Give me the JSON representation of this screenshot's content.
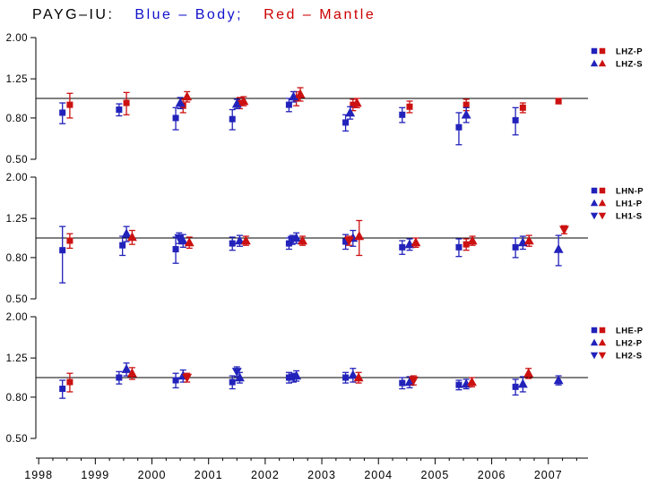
{
  "title": {
    "station": "PAYG–IU:",
    "body": "Blue – Body;",
    "mantle": "Red – Mantle"
  },
  "colors": {
    "body": "#2222bb",
    "mantle": "#cc1111",
    "title_station": "#000000",
    "title_body": "#1111cc",
    "title_mantle": "#cc0000",
    "axis": "#000000"
  },
  "chart_data": {
    "type": "scatter",
    "x_axis": {
      "ticks": [
        1998,
        1999,
        2000,
        2001,
        2002,
        2003,
        2004,
        2005,
        2006,
        2007
      ],
      "tick_labels": [
        "1998",
        "1999",
        "2000",
        "2001",
        "2002",
        "2003",
        "2004",
        "2005",
        "2006",
        "2007"
      ],
      "range": [
        1997.95,
        2007.7
      ]
    },
    "y_axis": {
      "scale": "log",
      "tick_values": [
        2.0,
        1.25,
        0.8,
        0.5
      ],
      "tick_labels": [
        "2.00",
        "1.25",
        "0.80",
        "0.50"
      ],
      "range": [
        0.5,
        2.0
      ],
      "ref_line": 1.0
    },
    "panels": [
      {
        "name": "LHZ",
        "legend": [
          {
            "label": "LHZ-P",
            "markers": [
              {
                "shape": "square",
                "color": "body"
              },
              {
                "shape": "square",
                "color": "mantle"
              }
            ]
          },
          {
            "label": "LHZ-S",
            "markers": [
              {
                "shape": "triangle-up",
                "color": "body"
              },
              {
                "shape": "triangle-up",
                "color": "mantle"
              }
            ]
          }
        ],
        "series": [
          {
            "name": "LHZ-P-body",
            "shape": "square",
            "color": "body",
            "points": [
              {
                "x": 1998.42,
                "y": 0.85,
                "e": 0.1
              },
              {
                "x": 1999.42,
                "y": 0.88,
                "e": 0.06
              },
              {
                "x": 2000.42,
                "y": 0.8,
                "e": 0.1
              },
              {
                "x": 2001.42,
                "y": 0.79,
                "e": 0.09
              },
              {
                "x": 2002.42,
                "y": 0.93,
                "e": 0.07
              },
              {
                "x": 2003.42,
                "y": 0.76,
                "e": 0.07
              },
              {
                "x": 2004.42,
                "y": 0.83,
                "e": 0.07
              },
              {
                "x": 2005.42,
                "y": 0.72,
                "e": 0.13
              },
              {
                "x": 2006.42,
                "y": 0.78,
                "e": 0.12
              }
            ]
          },
          {
            "name": "LHZ-P-mantle",
            "shape": "square",
            "color": "mantle",
            "points": [
              {
                "x": 1998.55,
                "y": 0.93,
                "e": 0.13
              },
              {
                "x": 1999.55,
                "y": 0.95,
                "e": 0.12
              },
              {
                "x": 2000.55,
                "y": 0.92,
                "e": 0.07
              },
              {
                "x": 2001.55,
                "y": 0.95,
                "e": 0.06
              },
              {
                "x": 2002.55,
                "y": 1.0,
                "e": 0.08
              },
              {
                "x": 2003.55,
                "y": 0.93,
                "e": 0.06
              },
              {
                "x": 2004.55,
                "y": 0.91,
                "e": 0.06
              },
              {
                "x": 2005.55,
                "y": 0.93,
                "e": 0.06
              },
              {
                "x": 2006.55,
                "y": 0.9,
                "e": 0.05
              },
              {
                "x": 2007.18,
                "y": 0.97,
                "e": 0.03
              }
            ]
          },
          {
            "name": "LHZ-S-body",
            "shape": "triangle-up",
            "color": "body",
            "points": [
              {
                "x": 2000.5,
                "y": 0.95,
                "e": 0.06
              },
              {
                "x": 2001.5,
                "y": 0.94,
                "e": 0.05
              },
              {
                "x": 2002.5,
                "y": 1.02,
                "e": 0.06
              },
              {
                "x": 2003.5,
                "y": 0.85,
                "e": 0.06
              },
              {
                "x": 2005.55,
                "y": 0.83,
                "e": 0.07
              }
            ]
          },
          {
            "name": "LHZ-S-mantle",
            "shape": "triangle-up",
            "color": "mantle",
            "points": [
              {
                "x": 2000.62,
                "y": 1.02,
                "e": 0.06
              },
              {
                "x": 2001.62,
                "y": 0.97,
                "e": 0.05
              },
              {
                "x": 2002.62,
                "y": 1.05,
                "e": 0.08
              },
              {
                "x": 2003.62,
                "y": 0.95,
                "e": 0.05
              }
            ]
          }
        ]
      },
      {
        "name": "LHN/LH1",
        "legend": [
          {
            "label": "LHN-P",
            "markers": [
              {
                "shape": "square",
                "color": "body"
              },
              {
                "shape": "square",
                "color": "mantle"
              }
            ]
          },
          {
            "label": "LH1-P",
            "markers": [
              {
                "shape": "triangle-up",
                "color": "body"
              },
              {
                "shape": "triangle-up",
                "color": "mantle"
              }
            ]
          },
          {
            "label": "LH1-S",
            "markers": [
              {
                "shape": "triangle-down",
                "color": "body"
              },
              {
                "shape": "triangle-down",
                "color": "mantle"
              }
            ]
          }
        ],
        "series": [
          {
            "name": "LHN-P-body",
            "shape": "square",
            "color": "body",
            "points": [
              {
                "x": 1998.42,
                "y": 0.87,
                "e": 0.27
              },
              {
                "x": 1999.48,
                "y": 0.92,
                "e": 0.1
              },
              {
                "x": 2000.42,
                "y": 0.88,
                "e": 0.13
              },
              {
                "x": 2001.42,
                "y": 0.94,
                "e": 0.07
              },
              {
                "x": 2002.42,
                "y": 0.94,
                "e": 0.06
              },
              {
                "x": 2003.42,
                "y": 0.96,
                "e": 0.08
              },
              {
                "x": 2004.42,
                "y": 0.9,
                "e": 0.07
              },
              {
                "x": 2005.42,
                "y": 0.9,
                "e": 0.09
              },
              {
                "x": 2006.42,
                "y": 0.9,
                "e": 0.1
              }
            ]
          },
          {
            "name": "LHN-P-mantle",
            "shape": "square",
            "color": "mantle",
            "points": [
              {
                "x": 1998.55,
                "y": 0.97,
                "e": 0.08
              },
              {
                "x": 2005.55,
                "y": 0.93,
                "e": 0.06
              }
            ]
          },
          {
            "name": "LH1-P-body",
            "shape": "triangle-up",
            "color": "body",
            "points": [
              {
                "x": 1999.55,
                "y": 1.05,
                "e": 0.09
              },
              {
                "x": 2000.55,
                "y": 0.97,
                "e": 0.07
              },
              {
                "x": 2001.55,
                "y": 0.97,
                "e": 0.06
              },
              {
                "x": 2002.55,
                "y": 1.0,
                "e": 0.06
              },
              {
                "x": 2003.55,
                "y": 1.0,
                "e": 0.09
              },
              {
                "x": 2004.55,
                "y": 0.93,
                "e": 0.06
              },
              {
                "x": 2006.55,
                "y": 0.95,
                "e": 0.07
              },
              {
                "x": 2007.18,
                "y": 0.88,
                "e": 0.15
              }
            ]
          },
          {
            "name": "LH1-P-mantle",
            "shape": "triangle-up",
            "color": "mantle",
            "points": [
              {
                "x": 1999.65,
                "y": 1.01,
                "e": 0.08
              },
              {
                "x": 2000.66,
                "y": 0.95,
                "e": 0.06
              },
              {
                "x": 2001.66,
                "y": 0.97,
                "e": 0.05
              },
              {
                "x": 2002.66,
                "y": 0.97,
                "e": 0.05
              },
              {
                "x": 2003.66,
                "y": 1.02,
                "e": 0.2
              },
              {
                "x": 2004.66,
                "y": 0.95,
                "e": 0.05
              },
              {
                "x": 2005.66,
                "y": 0.97,
                "e": 0.05
              },
              {
                "x": 2006.66,
                "y": 0.97,
                "e": 0.06
              }
            ]
          },
          {
            "name": "LH1-S-body",
            "shape": "triangle-down",
            "color": "body",
            "points": [
              {
                "x": 2000.48,
                "y": 1.0,
                "e": 0.06
              },
              {
                "x": 2002.48,
                "y": 0.98,
                "e": 0.05
              }
            ]
          },
          {
            "name": "LH1-S-mantle",
            "shape": "triangle-down",
            "color": "mantle",
            "points": [
              {
                "x": 2003.48,
                "y": 0.97,
                "e": 0.05
              },
              {
                "x": 2007.28,
                "y": 1.1,
                "e": 0.05
              }
            ]
          }
        ]
      },
      {
        "name": "LHE/LH2",
        "legend": [
          {
            "label": "LHE-P",
            "markers": [
              {
                "shape": "square",
                "color": "body"
              },
              {
                "shape": "square",
                "color": "mantle"
              }
            ]
          },
          {
            "label": "LH2-P",
            "markers": [
              {
                "shape": "triangle-up",
                "color": "body"
              },
              {
                "shape": "triangle-up",
                "color": "mantle"
              }
            ]
          },
          {
            "label": "LH2-S",
            "markers": [
              {
                "shape": "triangle-down",
                "color": "body"
              },
              {
                "shape": "triangle-down",
                "color": "mantle"
              }
            ]
          }
        ],
        "series": [
          {
            "name": "LHE-P-body",
            "shape": "square",
            "color": "body",
            "points": [
              {
                "x": 1998.42,
                "y": 0.88,
                "e": 0.09
              },
              {
                "x": 1999.42,
                "y": 1.0,
                "e": 0.07
              },
              {
                "x": 2000.42,
                "y": 0.97,
                "e": 0.08
              },
              {
                "x": 2001.42,
                "y": 0.95,
                "e": 0.07
              },
              {
                "x": 2002.42,
                "y": 1.0,
                "e": 0.06
              },
              {
                "x": 2003.42,
                "y": 1.0,
                "e": 0.06
              },
              {
                "x": 2004.42,
                "y": 0.94,
                "e": 0.06
              },
              {
                "x": 2005.42,
                "y": 0.92,
                "e": 0.05
              },
              {
                "x": 2006.42,
                "y": 0.9,
                "e": 0.08
              }
            ]
          },
          {
            "name": "LHE-P-mantle",
            "shape": "square",
            "color": "mantle",
            "points": [
              {
                "x": 1998.55,
                "y": 0.95,
                "e": 0.1
              }
            ]
          },
          {
            "name": "LH2-P-body",
            "shape": "triangle-up",
            "color": "body",
            "points": [
              {
                "x": 1999.55,
                "y": 1.1,
                "e": 0.08
              },
              {
                "x": 2000.55,
                "y": 1.02,
                "e": 0.07
              },
              {
                "x": 2001.55,
                "y": 1.0,
                "e": 0.06
              },
              {
                "x": 2002.55,
                "y": 1.02,
                "e": 0.06
              },
              {
                "x": 2003.55,
                "y": 1.03,
                "e": 0.08
              },
              {
                "x": 2004.55,
                "y": 0.95,
                "e": 0.06
              },
              {
                "x": 2005.55,
                "y": 0.93,
                "e": 0.05
              },
              {
                "x": 2006.55,
                "y": 0.93,
                "e": 0.08
              },
              {
                "x": 2007.18,
                "y": 0.97,
                "e": 0.05
              }
            ]
          },
          {
            "name": "LH2-P-mantle",
            "shape": "triangle-up",
            "color": "mantle",
            "points": [
              {
                "x": 1999.65,
                "y": 1.05,
                "e": 0.07
              },
              {
                "x": 2003.65,
                "y": 1.0,
                "e": 0.06
              },
              {
                "x": 2005.65,
                "y": 0.95,
                "e": 0.05
              },
              {
                "x": 2006.65,
                "y": 1.05,
                "e": 0.06
              }
            ]
          },
          {
            "name": "LH2-S-body",
            "shape": "triangle-down",
            "color": "body",
            "points": [
              {
                "x": 2001.5,
                "y": 1.07,
                "e": 0.06
              },
              {
                "x": 2002.5,
                "y": 1.0,
                "e": 0.05
              }
            ]
          },
          {
            "name": "LH2-S-mantle",
            "shape": "triangle-down",
            "color": "mantle",
            "points": [
              {
                "x": 2000.62,
                "y": 1.0,
                "e": 0.05
              },
              {
                "x": 2004.62,
                "y": 0.97,
                "e": 0.05
              }
            ]
          }
        ]
      }
    ]
  }
}
